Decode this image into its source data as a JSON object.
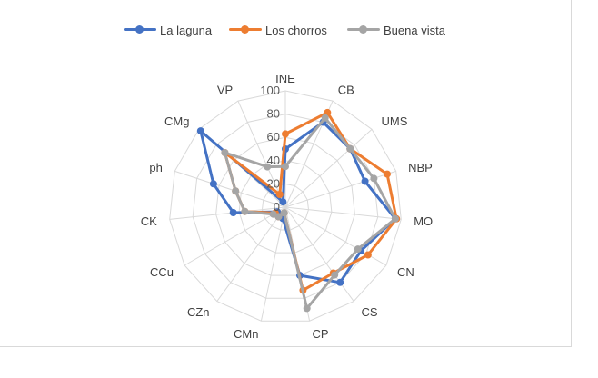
{
  "chart_data": {
    "type": "radar",
    "categories": [
      "INE",
      "CB",
      "UMS",
      "NBP",
      "MO",
      "CN",
      "CS",
      "CP",
      "CMn",
      "CZn",
      "CCu",
      "CK",
      "ph",
      "CMg",
      "VP"
    ],
    "series": [
      {
        "name": "La laguna",
        "color": "#4472C4",
        "values": [
          50,
          80,
          75,
          72,
          95,
          75,
          80,
          60,
          10,
          10,
          8,
          45,
          65,
          98,
          5
        ]
      },
      {
        "name": "Los chorros",
        "color": "#ED7D31",
        "values": [
          63,
          89,
          75,
          92,
          96,
          82,
          70,
          73,
          5,
          10,
          10,
          35,
          45,
          70,
          12
        ]
      },
      {
        "name": "Buena vista",
        "color": "#A5A5A5",
        "values": [
          35,
          84,
          75,
          80,
          95,
          72,
          72,
          89,
          5,
          10,
          12,
          35,
          45,
          70,
          38
        ]
      }
    ],
    "r_ticks": [
      0,
      20,
      40,
      60,
      80,
      100
    ],
    "rlim": [
      0,
      100
    ],
    "grid": true,
    "legend_position": "top"
  }
}
